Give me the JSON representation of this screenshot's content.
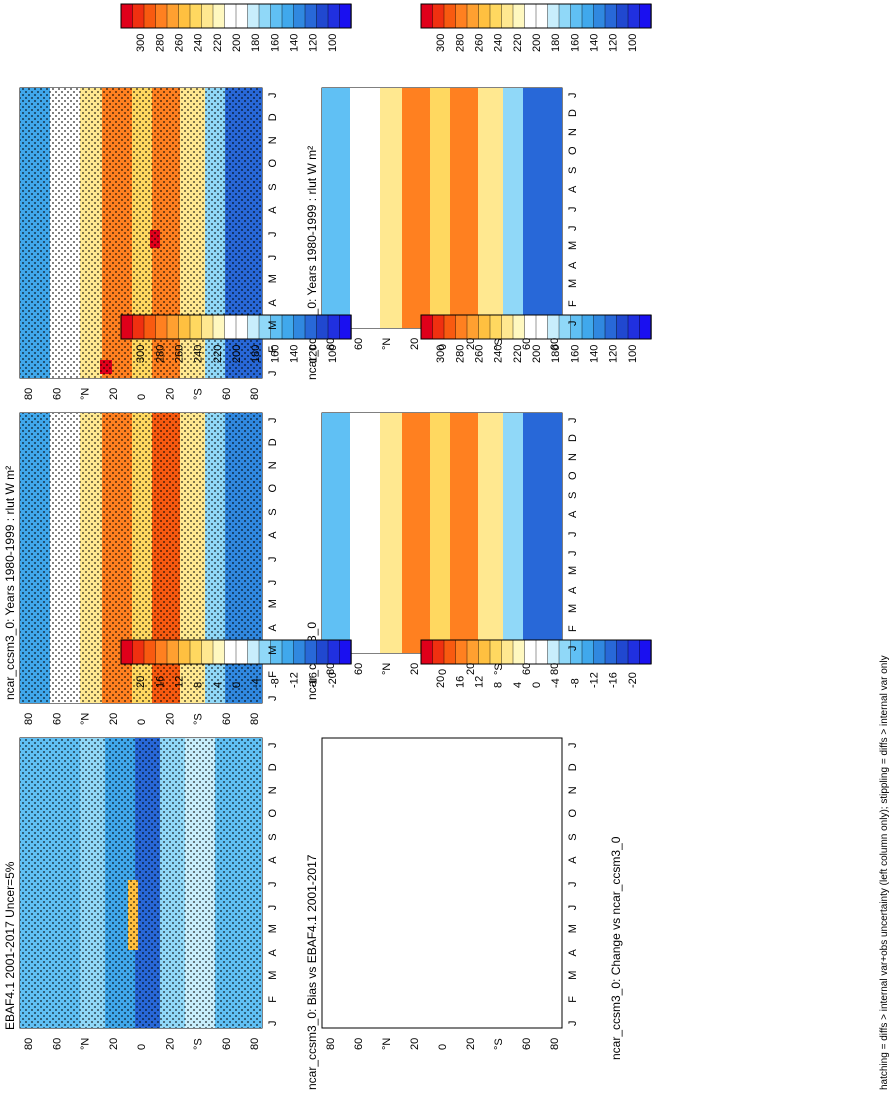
{
  "figure": {
    "footnote": "hatching = diffs > internal var+obs uncertainty (left column only); stippling = diffs > internal var only"
  },
  "colorbars": {
    "abs": {
      "labels": [
        "300",
        "280",
        "260",
        "240",
        "220",
        "200",
        "180",
        "160",
        "140",
        "120",
        "100"
      ],
      "colors": [
        "#e0001a",
        "#f03010",
        "#f85a10",
        "#ff8020",
        "#ffa030",
        "#ffc040",
        "#ffd860",
        "#ffe890",
        "#fff8c0",
        "#ffffff",
        "#ffffff",
        "#c8eefc",
        "#90d8f8",
        "#60c0f4",
        "#40a8ec",
        "#3088e0",
        "#2868d8",
        "#2048d0",
        "#2030e0",
        "#1a10f0"
      ]
    },
    "diff": {
      "labels": [
        "20",
        "16",
        "12",
        "8",
        "4",
        "0",
        "-4",
        "-8",
        "-12",
        "-16",
        "-20"
      ],
      "colors": [
        "#e0001a",
        "#f03010",
        "#f85a10",
        "#ff8020",
        "#ffa030",
        "#ffc040",
        "#ffd860",
        "#ffe890",
        "#fff8c0",
        "#ffffff",
        "#ffffff",
        "#c8eefc",
        "#90d8f8",
        "#60c0f4",
        "#40a8ec",
        "#3088e0",
        "#2868d8",
        "#2048d0",
        "#2030e0",
        "#1a10f0"
      ]
    }
  },
  "axes": {
    "months": [
      "J",
      "F",
      "M",
      "A",
      "M",
      "J",
      "J",
      "A",
      "S",
      "O",
      "N",
      "D",
      "J"
    ],
    "months_label": "D",
    "lat_labels": [
      "80",
      "60",
      "°N",
      "20",
      "0",
      "20",
      "°S",
      "60",
      "80"
    ]
  },
  "chart_data": [
    {
      "type": "heatmap",
      "title": "ncar_ccsm3_0: Years 1980-1999 : rlut W m²",
      "colorbar": "abs"
    },
    {
      "type": "heatmap",
      "title": "ncar_ccsm3_0: Years 1980-1999 : rlut W m²",
      "colorbar": "abs"
    },
    {
      "type": "heatmap",
      "title": "EBAF4.1 2001-2017 Uncer=5%",
      "colorbar": "abs"
    },
    {
      "type": "heatmap",
      "title": "ncar_ccsm3_0",
      "colorbar": "abs"
    },
    {
      "type": "heatmap",
      "title": "ncar_ccsm3_0: Bias vs EBAF4.1 2001-2017",
      "colorbar": "diff"
    },
    {
      "type": "heatmap",
      "title": "ncar_ccsm3_0: Change vs ncar_ccsm3_0",
      "colorbar": "diff"
    }
  ]
}
